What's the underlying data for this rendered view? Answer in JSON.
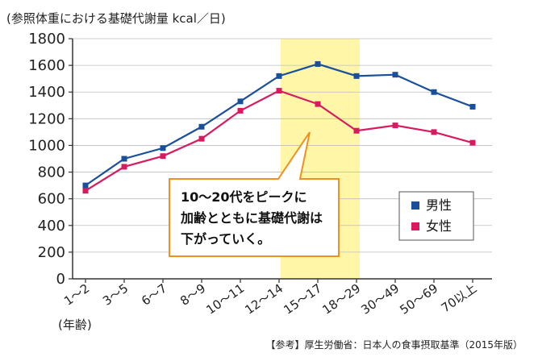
{
  "chart_data": {
    "type": "line",
    "ylabel": "(参照体重における基礎代謝量 kcal／日)",
    "xunit": "(年齢)",
    "categories": [
      "1～2",
      "3～5",
      "6～7",
      "8～9",
      "10～11",
      "12～14",
      "15～17",
      "18～29",
      "30～49",
      "50～69",
      "70以上"
    ],
    "ylim": [
      0,
      1800
    ],
    "yticks": [
      "0",
      "200",
      "400",
      "600",
      "800",
      "1000",
      "1200",
      "1400",
      "1600",
      "1800"
    ],
    "grid": true,
    "series": [
      {
        "name": "男性",
        "color": "#1a4f9c",
        "marker": "square",
        "values": [
          700,
          900,
          980,
          1140,
          1330,
          1520,
          1610,
          1520,
          1530,
          1400,
          1290
        ]
      },
      {
        "name": "女性",
        "color": "#d81b60",
        "marker": "square",
        "values": [
          660,
          840,
          920,
          1050,
          1260,
          1410,
          1310,
          1110,
          1150,
          1100,
          1020
        ]
      }
    ],
    "highlight": {
      "from": "12～14",
      "to": "15～17",
      "color": "#fff6a8"
    },
    "legend_position": "right",
    "callout": {
      "lines": [
        "10～20代をピークに",
        "加齢とともに基礎代謝は",
        "下がっていく。"
      ],
      "border_color": "#f0901e"
    },
    "source": "【参考】厚生労働省：日本人の食事摂取基準（2015年版）"
  }
}
